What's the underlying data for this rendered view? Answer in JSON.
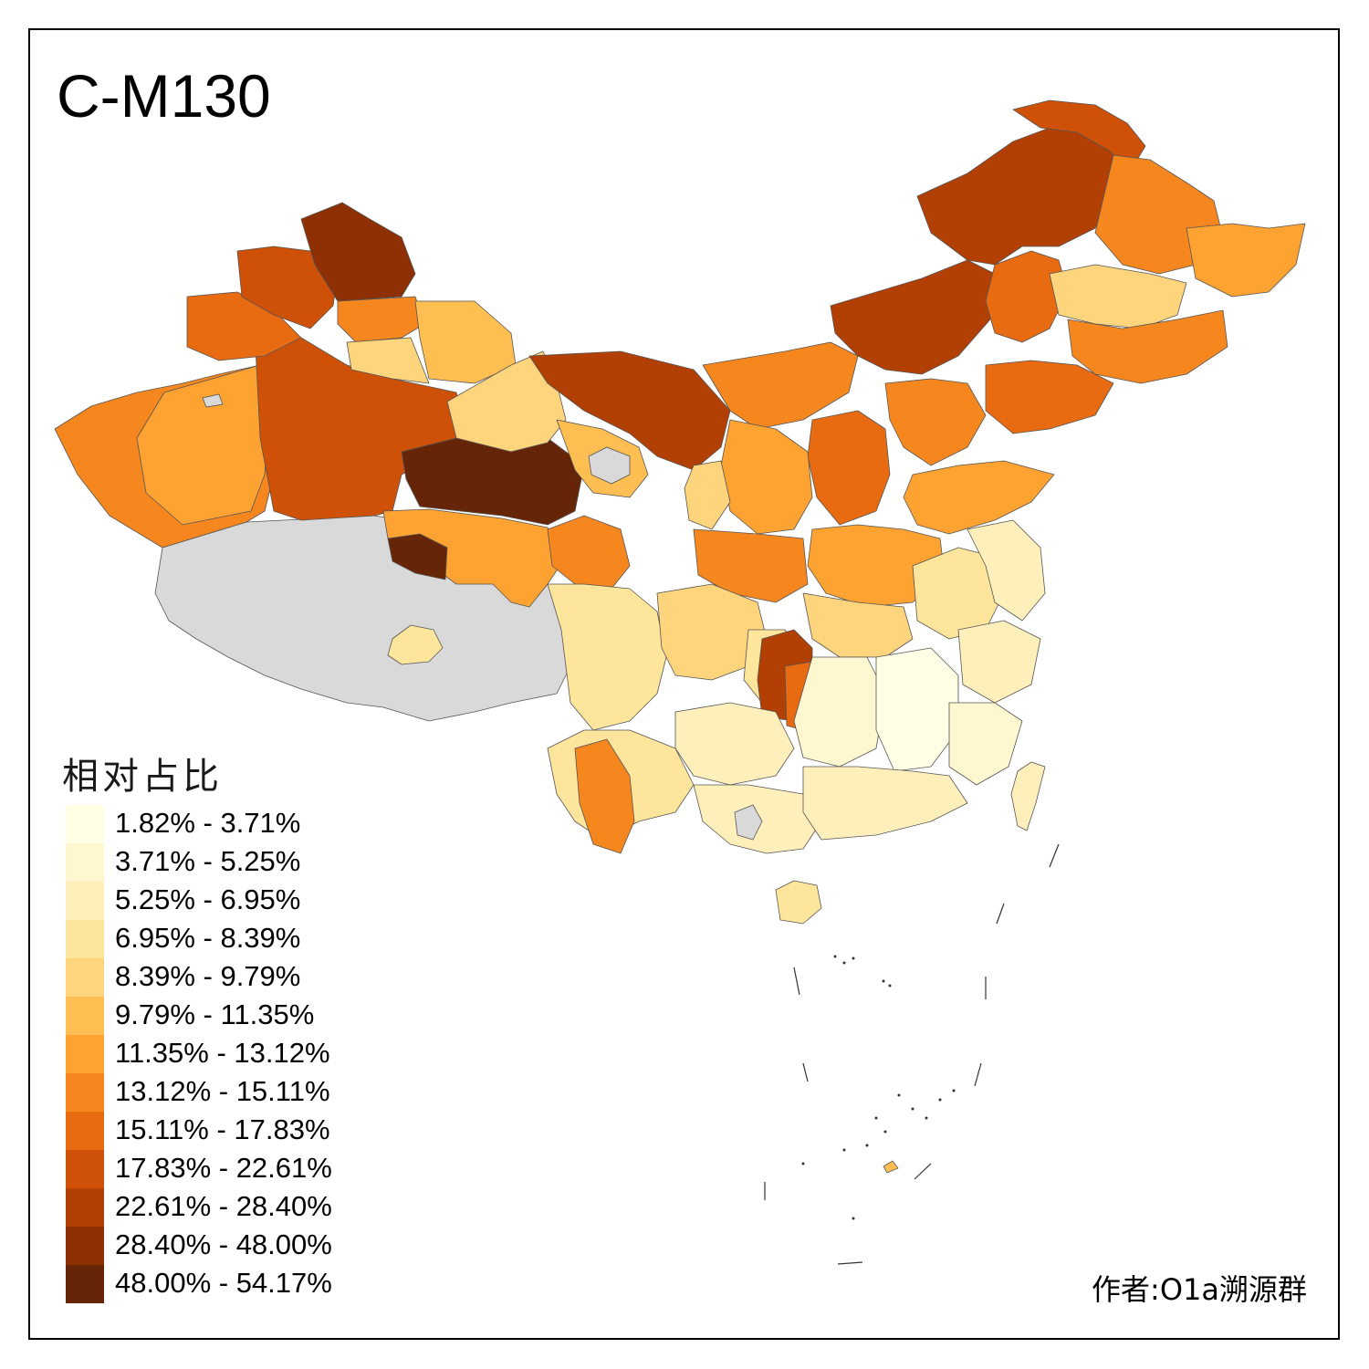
{
  "title": "C-M130",
  "legend": {
    "title": "相对占比",
    "items": [
      {
        "label": "1.82% - 3.71%",
        "color": "#ffffe5"
      },
      {
        "label": "3.71% - 5.25%",
        "color": "#fff7cf"
      },
      {
        "label": "5.25% - 6.95%",
        "color": "#fff0bb"
      },
      {
        "label": "6.95% - 8.39%",
        "color": "#fee59c"
      },
      {
        "label": "8.39% - 9.79%",
        "color": "#fed47d"
      },
      {
        "label": "9.79% - 11.35%",
        "color": "#febe52"
      },
      {
        "label": "11.35% - 13.12%",
        "color": "#fea232"
      },
      {
        "label": "13.12% - 15.11%",
        "color": "#f6871f"
      },
      {
        "label": "15.11% - 17.83%",
        "color": "#e86b12"
      },
      {
        "label": "17.83% - 22.61%",
        "color": "#cf5108"
      },
      {
        "label": "22.61% - 28.40%",
        "color": "#b23f04"
      },
      {
        "label": "28.40% - 48.00%",
        "color": "#8e3004"
      },
      {
        "label": "48.00% - 54.17%",
        "color": "#662506"
      }
    ]
  },
  "no_data_color": "#d9d9d9",
  "author": "作者:O1a溯源群"
}
